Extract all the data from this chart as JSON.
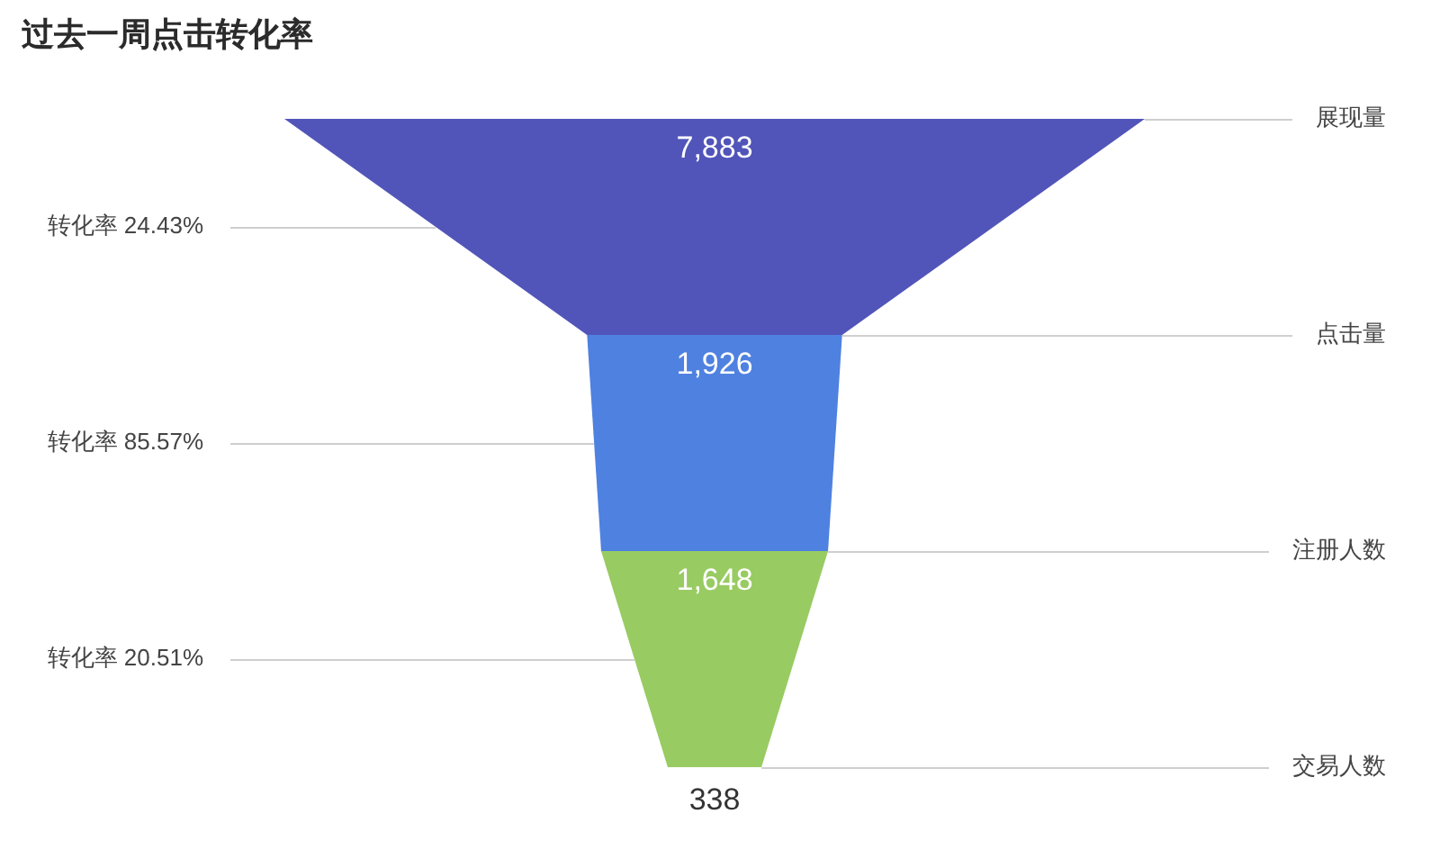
{
  "chart_data": {
    "type": "other",
    "title": "过去一周点击转化率",
    "categories": [
      "展现量",
      "点击量",
      "注册人数",
      "交易人数"
    ],
    "values": [
      7883,
      1926,
      1648,
      338
    ],
    "value_labels": [
      "7,883",
      "1,926",
      "1,648",
      "338"
    ],
    "colors": [
      "#5155b9",
      "#4f81e0",
      "#98cb62",
      null
    ],
    "annotations": [
      "转化率 24.43%",
      "转化率 85.57%",
      "转化率 20.51%"
    ]
  }
}
